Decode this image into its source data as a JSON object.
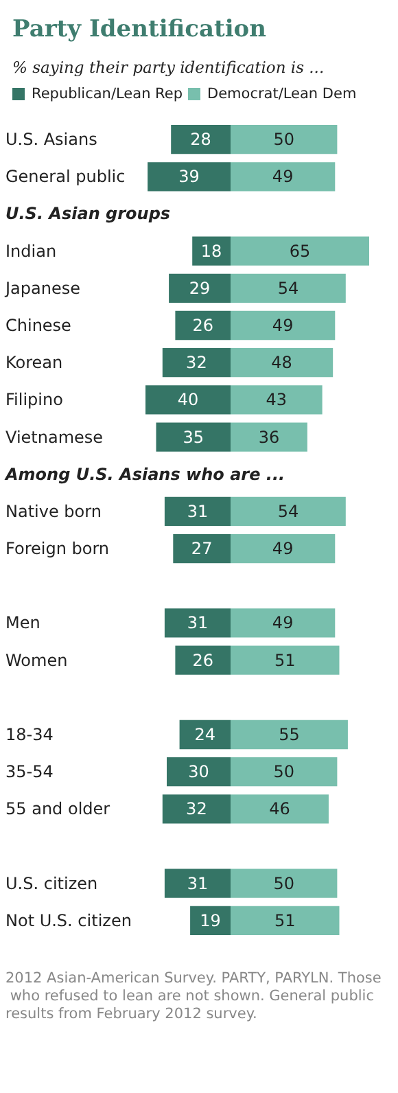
{
  "chart_data": [
    {
      "type": "bar",
      "orientation": "horizontal",
      "title": "Party Identification",
      "subtitle": "% saying their party identification is ...",
      "categories": [
        "U.S. Asians",
        "General public",
        "U.S. Asian groups",
        "Indian",
        "Japanese",
        "Chinese",
        "Korean",
        "Filipino",
        "Vietnamese",
        "Among U.S. Asians who are ...",
        "Native born",
        "Foreign born",
        null,
        "Men",
        "Women",
        null,
        "18-34",
        "35-54",
        "55 and older",
        null,
        "U.S. citizen",
        "Not U.S. citizen"
      ],
      "series": [
        {
          "name": "Republican/Lean Rep",
          "color": "#357566",
          "values": [
            28,
            39,
            null,
            18,
            29,
            26,
            32,
            40,
            35,
            null,
            31,
            27,
            null,
            31,
            26,
            null,
            24,
            30,
            32,
            null,
            31,
            19
          ]
        }
      ],
      "xlim": [
        40,
        0
      ],
      "tick_labels": "y",
      "data_labels": true,
      "legend": "top",
      "annotations": [
        "2012 Asian-American Survey. PARTY, PARYLN. Those who refused to lean are not shown. General public results from February 2012 survey."
      ]
    },
    {
      "type": "bar",
      "orientation": "horizontal",
      "series": [
        {
          "name": "Democrat/Lean Dem",
          "color": "#78bfad",
          "values": [
            50,
            49,
            null,
            65,
            54,
            49,
            48,
            43,
            36,
            null,
            54,
            49,
            null,
            49,
            51,
            null,
            55,
            50,
            46,
            null,
            50,
            51
          ]
        }
      ],
      "xlim": [
        0,
        65
      ],
      "tick_labels": false,
      "data_labels": true,
      "legend": "top"
    }
  ]
}
